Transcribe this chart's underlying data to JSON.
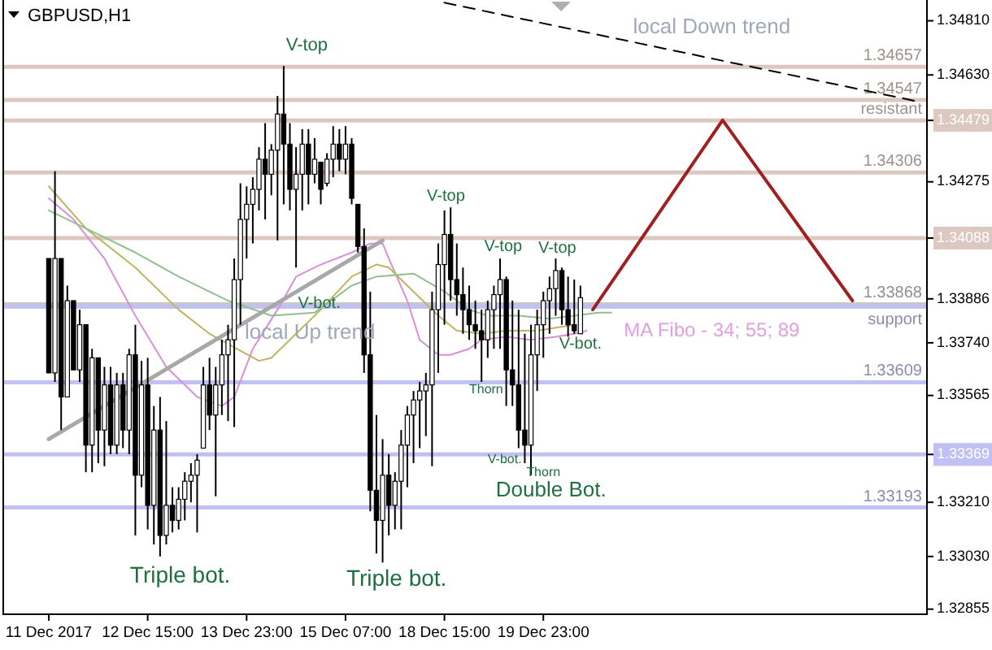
{
  "chart_data": {
    "type": "candlestick",
    "title": "GBPUSD,H1",
    "ylim": [
      1.32838,
      1.34879
    ],
    "yticks": [
      {
        "value": 1.3481,
        "label": "1.34810"
      },
      {
        "value": 1.3463,
        "label": "1.34630"
      },
      {
        "value": 1.34479,
        "label": "1.34479"
      },
      {
        "value": 1.34275,
        "label": "1.34275"
      },
      {
        "value": 1.34088,
        "label": "1.34088"
      },
      {
        "value": 1.33886,
        "label": "1.33886"
      },
      {
        "value": 1.3374,
        "label": "1.33740"
      },
      {
        "value": 1.33565,
        "label": "1.33565"
      },
      {
        "value": 1.33369,
        "label": "1.33369"
      },
      {
        "value": 1.3321,
        "label": "1.33210"
      },
      {
        "value": 1.3303,
        "label": "1.33030"
      },
      {
        "value": 1.32855,
        "label": "1.32855"
      }
    ],
    "categories": [
      "11 Dec 2017",
      null,
      null,
      null,
      null,
      null,
      null,
      null,
      null,
      null,
      null,
      null,
      null,
      null,
      null,
      null,
      "12 Dec 15:00",
      null,
      null,
      null,
      null,
      null,
      null,
      null,
      null,
      null,
      null,
      null,
      null,
      null,
      null,
      null,
      "13 Dec 23:00",
      null,
      null,
      null,
      null,
      null,
      null,
      null,
      null,
      null,
      null,
      null,
      null,
      null,
      null,
      null,
      "15 Dec 07:00",
      null,
      null,
      null,
      null,
      null,
      null,
      null,
      null,
      null,
      null,
      null,
      null,
      null,
      null,
      null,
      "18 Dec 15:00",
      null,
      null,
      null,
      null,
      null,
      null,
      null,
      null,
      null,
      null,
      null,
      null,
      null,
      null,
      null,
      "19 Dec 23:00",
      null,
      null,
      null,
      null,
      null,
      null,
      null,
      null,
      null,
      null,
      null,
      null,
      null,
      null,
      null,
      null,
      null,
      null,
      null,
      null,
      null,
      null,
      null,
      null,
      null,
      null,
      null,
      null,
      null,
      null,
      null,
      null,
      null,
      null,
      null,
      null,
      null,
      null,
      null,
      null,
      null,
      null,
      null,
      null,
      null,
      null,
      null,
      null,
      null,
      null,
      null,
      null,
      null,
      null,
      null,
      null,
      null,
      null,
      null,
      null,
      null
    ],
    "ohlc": [
      [
        1.3402,
        1.3402,
        1.3364,
        1.3364
      ],
      [
        1.3364,
        1.3431,
        1.3361,
        1.3402
      ],
      [
        1.3402,
        1.3402,
        1.3345,
        1.3356
      ],
      [
        1.3356,
        1.3393,
        1.3356,
        1.3388
      ],
      [
        1.3388,
        1.3388,
        1.3365,
        1.3365
      ],
      [
        1.3365,
        1.3385,
        1.3361,
        1.338
      ],
      [
        1.338,
        1.338,
        1.3331,
        1.334
      ],
      [
        1.334,
        1.3372,
        1.3331,
        1.3369
      ],
      [
        1.3369,
        1.3369,
        1.3334,
        1.3345
      ],
      [
        1.3345,
        1.3366,
        1.3333,
        1.336
      ],
      [
        1.336,
        1.3366,
        1.3337,
        1.334
      ],
      [
        1.334,
        1.3364,
        1.3337,
        1.336
      ],
      [
        1.336,
        1.3364,
        1.3339,
        1.3345
      ],
      [
        1.3345,
        1.3372,
        1.3337,
        1.337
      ],
      [
        1.337,
        1.338,
        1.331,
        1.333
      ],
      [
        1.333,
        1.3368,
        1.3326,
        1.336
      ],
      [
        1.336,
        1.3369,
        1.3312,
        1.332
      ],
      [
        1.332,
        1.3353,
        1.3307,
        1.3345
      ],
      [
        1.3345,
        1.3356,
        1.3303,
        1.331
      ],
      [
        1.331,
        1.3348,
        1.3307,
        1.332
      ],
      [
        1.332,
        1.3326,
        1.3311,
        1.3315
      ],
      [
        1.3315,
        1.3326,
        1.3312,
        1.3322
      ],
      [
        1.3322,
        1.3331,
        1.3315,
        1.3328
      ],
      [
        1.3328,
        1.3334,
        1.3321,
        1.333
      ],
      [
        1.333,
        1.3337,
        1.3311,
        1.3335
      ],
      [
        1.3339,
        1.3366,
        1.3339,
        1.336
      ],
      [
        1.336,
        1.3369,
        1.3345,
        1.335
      ],
      [
        1.335,
        1.3366,
        1.3323,
        1.336
      ],
      [
        1.336,
        1.3375,
        1.335,
        1.337
      ],
      [
        1.337,
        1.338,
        1.3348,
        1.3375
      ],
      [
        1.3375,
        1.3402,
        1.3346,
        1.3395
      ],
      [
        1.3395,
        1.3427,
        1.338,
        1.3415
      ],
      [
        1.3415,
        1.3426,
        1.3402,
        1.342
      ],
      [
        1.342,
        1.3429,
        1.3407,
        1.3425
      ],
      [
        1.3425,
        1.3439,
        1.3418,
        1.3435
      ],
      [
        1.3435,
        1.3447,
        1.3415,
        1.343
      ],
      [
        1.343,
        1.344,
        1.3423,
        1.3438
      ],
      [
        1.3438,
        1.3456,
        1.3408,
        1.345
      ],
      [
        1.345,
        1.3466,
        1.342,
        1.344
      ],
      [
        1.344,
        1.3447,
        1.3418,
        1.3425
      ],
      [
        1.3425,
        1.3439,
        1.3399,
        1.343
      ],
      [
        1.343,
        1.3445,
        1.3418,
        1.344
      ],
      [
        1.344,
        1.3445,
        1.342,
        1.343
      ],
      [
        1.343,
        1.3442,
        1.3427,
        1.3435
      ],
      [
        1.3434,
        1.3434,
        1.342,
        1.3425
      ],
      [
        1.3427,
        1.3437,
        1.3426,
        1.3435
      ],
      [
        1.3435,
        1.3446,
        1.3429,
        1.344
      ],
      [
        1.344,
        1.3445,
        1.3431,
        1.3435
      ],
      [
        1.3435,
        1.3446,
        1.343,
        1.344
      ],
      [
        1.344,
        1.3442,
        1.342,
        1.3422
      ],
      [
        1.342,
        1.342,
        1.3404,
        1.3406
      ],
      [
        1.3406,
        1.3412,
        1.3364,
        1.337
      ],
      [
        1.337,
        1.3391,
        1.3318,
        1.3325
      ],
      [
        1.3325,
        1.335,
        1.3304,
        1.3315
      ],
      [
        1.3315,
        1.3342,
        1.3301,
        1.333
      ],
      [
        1.333,
        1.3337,
        1.331,
        1.332
      ],
      [
        1.332,
        1.3331,
        1.3312,
        1.3328
      ],
      [
        1.3328,
        1.3345,
        1.3312,
        1.334
      ],
      [
        1.334,
        1.3353,
        1.3326,
        1.335
      ],
      [
        1.335,
        1.3358,
        1.3334,
        1.3355
      ],
      [
        1.3355,
        1.3361,
        1.3339,
        1.3358
      ],
      [
        1.3358,
        1.3364,
        1.3343,
        1.336
      ],
      [
        1.336,
        1.3391,
        1.3333,
        1.3385
      ],
      [
        1.3385,
        1.3407,
        1.3364,
        1.34
      ],
      [
        1.34,
        1.3418,
        1.338,
        1.341
      ],
      [
        1.341,
        1.3419,
        1.3388,
        1.3395
      ],
      [
        1.3395,
        1.3407,
        1.3383,
        1.339
      ],
      [
        1.339,
        1.3399,
        1.3377,
        1.3385
      ],
      [
        1.3385,
        1.3393,
        1.3375,
        1.338
      ],
      [
        1.338,
        1.3388,
        1.3372,
        1.3378
      ],
      [
        1.3378,
        1.3385,
        1.3361,
        1.3375
      ],
      [
        1.3375,
        1.3388,
        1.3369,
        1.3385
      ],
      [
        1.3385,
        1.3393,
        1.3372,
        1.339
      ],
      [
        1.339,
        1.3402,
        1.3372,
        1.3395
      ],
      [
        1.3395,
        1.3396,
        1.3353,
        1.3365
      ],
      [
        1.3365,
        1.3388,
        1.3353,
        1.336
      ],
      [
        1.336,
        1.3385,
        1.3339,
        1.3345
      ],
      [
        1.3345,
        1.3377,
        1.3334,
        1.334
      ],
      [
        1.334,
        1.338,
        1.333,
        1.337
      ],
      [
        1.337,
        1.3385,
        1.3358,
        1.338
      ],
      [
        1.338,
        1.3391,
        1.3369,
        1.3388
      ],
      [
        1.3388,
        1.3396,
        1.3377,
        1.3392
      ],
      [
        1.3392,
        1.3402,
        1.3383,
        1.3398
      ],
      [
        1.3398,
        1.3399,
        1.338,
        1.3385
      ],
      [
        1.3385,
        1.3396,
        1.3376,
        1.338
      ],
      [
        1.338,
        1.3395,
        1.3377,
        1.3378
      ],
      [
        1.3377,
        1.3393,
        1.3377,
        1.3389
      ],
      null,
      null,
      null,
      null,
      null,
      null,
      null,
      null,
      null,
      null,
      null,
      null,
      null,
      null,
      null,
      null,
      null,
      null,
      null,
      null,
      null,
      null,
      null,
      null,
      null,
      null,
      null,
      null,
      null,
      null,
      null,
      null,
      null,
      null,
      null,
      null,
      null,
      null,
      null,
      null,
      null,
      null,
      null,
      null,
      null,
      null,
      null,
      null,
      null,
      null,
      null,
      null,
      null,
      null,
      null
    ],
    "series": [
      {
        "type": "line",
        "color": "#d890d8",
        "values": [
          1.3422,
          null,
          null,
          null,
          1.3415,
          null,
          null,
          null,
          null,
          1.3402,
          null,
          null,
          null,
          null,
          1.3383,
          null,
          null,
          null,
          null,
          1.3366,
          null,
          null,
          null,
          null,
          1.3356,
          null,
          null,
          null,
          1.3353,
          null,
          1.3356,
          null,
          null,
          1.3372,
          null,
          null,
          null,
          1.3385,
          null,
          null,
          1.3396,
          null,
          null,
          null,
          1.34,
          null,
          null,
          null,
          null,
          1.3404,
          null,
          null,
          1.3407,
          null,
          1.3407,
          1.3402,
          null,
          null,
          1.3388,
          null,
          1.3375,
          null,
          null,
          1.337,
          null,
          1.337,
          null,
          null,
          1.3372,
          null,
          1.3375,
          null,
          null,
          null,
          1.3376,
          null,
          null,
          null,
          1.3375,
          null,
          null,
          null,
          1.3376,
          null,
          null,
          1.3377,
          null,
          1.3378,
          null,
          null,
          null,
          null,
          null,
          null,
          null,
          null,
          null,
          null,
          null,
          null,
          null,
          null,
          null,
          null,
          null,
          null,
          null,
          null,
          null,
          null,
          null,
          null,
          null,
          null,
          null,
          null,
          null,
          null,
          null,
          null,
          null,
          null,
          null,
          null,
          null,
          null,
          null,
          null,
          null,
          null,
          null,
          null,
          null,
          null,
          null,
          null,
          null,
          null,
          null,
          null,
          null,
          null
        ]
      },
      {
        "type": "line",
        "color": "#c0b460",
        "values": [
          1.3426,
          null,
          null,
          null,
          null,
          null,
          1.3412,
          null,
          null,
          null,
          null,
          null,
          null,
          null,
          1.3399,
          null,
          null,
          null,
          null,
          null,
          null,
          1.3385,
          null,
          null,
          null,
          null,
          1.3377,
          null,
          null,
          null,
          null,
          null,
          null,
          null,
          1.3368,
          null,
          1.3369,
          null,
          null,
          null,
          1.3377,
          null,
          null,
          null,
          1.3385,
          null,
          null,
          null,
          null,
          1.3396,
          null,
          null,
          null,
          1.34,
          null,
          1.3399,
          null,
          null,
          null,
          1.3391,
          null,
          null,
          null,
          1.3383,
          null,
          null,
          1.3378,
          null,
          null,
          null,
          1.3377,
          null,
          null,
          null,
          1.3378,
          null,
          null,
          null,
          null,
          1.3378,
          null,
          null,
          null,
          null,
          null,
          1.338,
          null,
          null,
          null,
          null,
          null,
          null,
          null,
          null,
          null,
          null,
          null,
          null,
          null,
          null,
          null,
          null,
          null,
          null,
          null,
          null,
          null,
          null,
          null,
          null,
          null,
          null,
          null,
          null,
          null,
          null,
          null,
          null,
          null,
          null,
          null,
          null,
          null,
          null,
          null,
          null,
          null,
          null,
          null,
          null,
          null,
          null,
          null,
          null,
          null,
          null,
          null,
          null,
          null,
          null,
          null,
          null
        ]
      },
      {
        "type": "line",
        "color": "#90c090",
        "values": [
          1.3418,
          null,
          null,
          null,
          null,
          null,
          1.3412,
          null,
          null,
          null,
          null,
          null,
          null,
          null,
          1.3404,
          null,
          null,
          null,
          null,
          null,
          null,
          1.3396,
          null,
          null,
          null,
          null,
          null,
          null,
          null,
          1.3388,
          null,
          null,
          null,
          null,
          null,
          null,
          1.3383,
          null,
          null,
          null,
          null,
          null,
          null,
          1.3384,
          null,
          null,
          null,
          null,
          null,
          1.3393,
          null,
          null,
          null,
          1.3396,
          null,
          null,
          null,
          null,
          null,
          1.3397,
          null,
          null,
          null,
          null,
          1.3391,
          null,
          null,
          null,
          1.3385,
          null,
          null,
          1.3383,
          null,
          null,
          null,
          null,
          1.3383,
          null,
          null,
          null,
          null,
          1.3382,
          null,
          null,
          null,
          null,
          null,
          null,
          null,
          1.3384,
          null,
          1.3384,
          null,
          null,
          null,
          null,
          null,
          null,
          null,
          null,
          null,
          null,
          null,
          null,
          null,
          null,
          null,
          null,
          null,
          null,
          null,
          null,
          null,
          null,
          null,
          null,
          null,
          null,
          null,
          null,
          null,
          null,
          null,
          null,
          null,
          null,
          null,
          null,
          null,
          null,
          null,
          null,
          null,
          null,
          null,
          null,
          null,
          null,
          null,
          null,
          null,
          null
        ]
      },
      {
        "type": "line",
        "color": "#a8a8a8",
        "values": [
          1.3342,
          null,
          null,
          null,
          null,
          null,
          null,
          null,
          null,
          null,
          null,
          null,
          null,
          null,
          null,
          null,
          null,
          null,
          null,
          null,
          null,
          null,
          null,
          null,
          null,
          null,
          null,
          null,
          null,
          null,
          null,
          null,
          null,
          null,
          null,
          null,
          null,
          null,
          null,
          null,
          null,
          null,
          null,
          null,
          null,
          null,
          null,
          null,
          null,
          null,
          null,
          null,
          null,
          null,
          1.3408,
          null,
          null,
          null,
          null,
          null,
          null,
          null,
          null,
          null,
          null,
          null,
          null,
          null,
          null,
          null,
          null,
          null,
          null,
          null,
          null,
          null,
          null,
          null,
          null,
          null,
          null,
          null,
          null,
          null,
          null,
          null,
          null,
          null,
          null,
          null,
          null,
          null,
          null,
          null,
          null,
          null,
          null,
          null,
          null,
          null,
          null,
          null,
          null,
          null,
          null,
          null,
          null,
          null,
          null,
          null,
          null,
          null,
          null,
          null,
          null,
          null,
          null,
          null,
          null,
          null,
          null,
          null,
          null,
          null,
          null,
          null,
          null,
          null,
          null,
          null,
          null,
          null,
          null,
          null,
          null,
          null,
          null,
          null,
          null,
          null,
          null,
          null
        ]
      },
      {
        "type": "line",
        "color": "#000000",
        "line_style": "dashed",
        "values": [
          null,
          null,
          null,
          null,
          null,
          null,
          null,
          null,
          null,
          null,
          null,
          null,
          null,
          null,
          null,
          null,
          null,
          null,
          null,
          null,
          null,
          null,
          null,
          null,
          null,
          null,
          null,
          null,
          null,
          null,
          null,
          null,
          null,
          null,
          null,
          null,
          null,
          null,
          null,
          null,
          null,
          null,
          null,
          null,
          null,
          null,
          null,
          null,
          null,
          null,
          null,
          null,
          null,
          null,
          null,
          null,
          null,
          null,
          null,
          null,
          null,
          null,
          null,
          null,
          1.3487,
          null,
          null,
          null,
          null,
          null,
          null,
          null,
          null,
          null,
          null,
          null,
          null,
          null,
          null,
          null,
          null,
          null,
          null,
          null,
          null,
          null,
          null,
          null,
          null,
          null,
          null,
          null,
          null,
          null,
          null,
          null,
          null,
          null,
          null,
          null,
          null,
          null,
          null,
          null,
          null,
          null,
          null,
          null,
          null,
          null,
          null,
          null,
          null,
          null,
          null,
          null,
          null,
          null,
          null,
          null,
          null,
          null,
          null,
          null,
          null,
          null,
          null,
          null,
          null,
          null,
          null,
          null,
          null,
          null,
          null,
          null,
          null,
          null,
          null,
          null,
          null,
          1.3454
        ]
      },
      {
        "type": "line",
        "color": "#a02020",
        "values": [
          null,
          null,
          null,
          null,
          null,
          null,
          null,
          null,
          null,
          null,
          null,
          null,
          null,
          null,
          null,
          null,
          null,
          null,
          null,
          null,
          null,
          null,
          null,
          null,
          null,
          null,
          null,
          null,
          null,
          null,
          null,
          null,
          null,
          null,
          null,
          null,
          null,
          null,
          null,
          null,
          null,
          null,
          null,
          null,
          null,
          null,
          null,
          null,
          null,
          null,
          null,
          null,
          null,
          null,
          null,
          null,
          null,
          null,
          null,
          null,
          null,
          null,
          null,
          null,
          null,
          null,
          null,
          null,
          null,
          null,
          null,
          null,
          null,
          null,
          null,
          null,
          null,
          null,
          null,
          null,
          null,
          null,
          null,
          null,
          null,
          null,
          null,
          null,
          1.3385,
          null,
          null,
          null,
          null,
          null,
          null,
          null,
          null,
          null,
          null,
          null,
          null,
          null,
          null,
          null,
          null,
          null,
          null,
          null,
          null,
          1.3448,
          null,
          null,
          null,
          null,
          null,
          null,
          null,
          null,
          null,
          null,
          null,
          null,
          null,
          null,
          null,
          null,
          null,
          null,
          null,
          null,
          1.3388,
          null,
          null,
          null,
          null,
          null,
          null,
          null,
          null,
          null,
          null,
          null
        ]
      }
    ],
    "ref_lines": [
      {
        "axis": "y",
        "value": 1.34657,
        "label": "1.34657",
        "color": "#dcc8c0"
      },
      {
        "axis": "y",
        "value": 1.34547,
        "label": "1.34547",
        "color": "#dcc8c0"
      },
      {
        "axis": "y",
        "value": 1.34479,
        "label": "resistant",
        "color": "#dcc8c0"
      },
      {
        "axis": "y",
        "value": 1.34306,
        "label": "1.34306",
        "color": "#dcc8c0"
      },
      {
        "axis": "y",
        "value": 1.34088,
        "label": null,
        "color": "#dcc8c0"
      },
      {
        "axis": "y",
        "value": 1.33868,
        "label": "1.33868",
        "color": "#c8c8c8"
      },
      {
        "axis": "y",
        "value": 1.3386,
        "label": "support",
        "color": "#c0c0f4"
      },
      {
        "axis": "y",
        "value": 1.33609,
        "label": "1.33609",
        "color": "#c0c0f4"
      },
      {
        "axis": "y",
        "value": 1.33369,
        "label": null,
        "color": "#c0c0f4"
      },
      {
        "axis": "y",
        "value": 1.33193,
        "label": "1.33193",
        "color": "#c0c0f4"
      }
    ],
    "annotations": [
      "local Down trend",
      "V-top",
      "V-top",
      "V-top",
      "V-top",
      "V-bot.",
      "V-bot.",
      "V-bot.",
      "Thorn",
      "Thorn",
      "Triple bot.",
      "Triple bot.",
      "Double Bot.",
      "local Up trend",
      "MA Fibo - 34; 55; 89"
    ]
  }
}
